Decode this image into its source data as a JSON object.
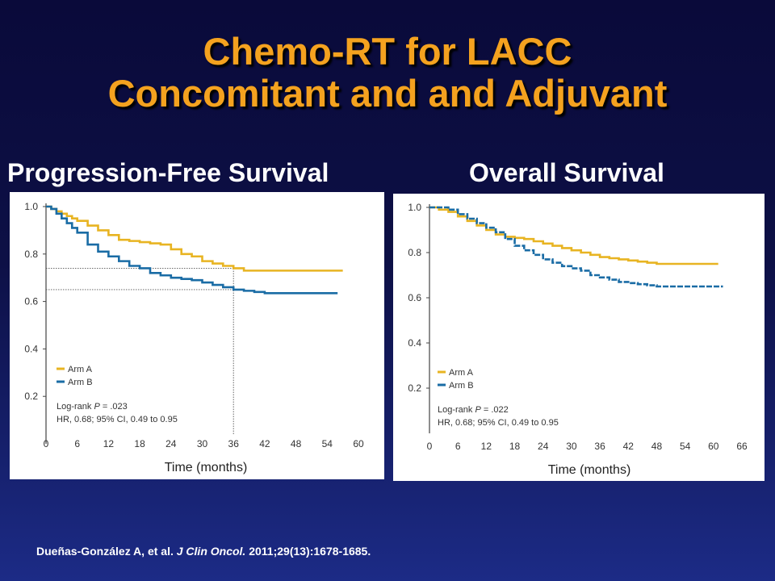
{
  "slide": {
    "title_line1": "Chemo-RT for LACC",
    "title_line2": "Concomitant and and Adjuvant"
  },
  "citation": {
    "authors": "Dueñas-González A, et al.",
    "journal": "J Clin Oncol.",
    "details": "2011;29(13):1678-1685."
  },
  "colors": {
    "arm_a": "#e8b422",
    "arm_b": "#1a6ca5",
    "title": "#f4a21f"
  },
  "chart_data": [
    {
      "type": "line",
      "panel_title": "Progression-Free Survival",
      "xlabel": "Time (months)",
      "ylabel": "",
      "xlim": [
        0,
        60
      ],
      "ylim": [
        0,
        1.0
      ],
      "x_ticks": [
        0,
        6,
        12,
        18,
        24,
        30,
        36,
        42,
        48,
        54,
        60
      ],
      "x_tick_labels": [
        "0",
        "6",
        "12",
        "18",
        "24",
        "30",
        "36",
        "42",
        "48",
        "54",
        "60"
      ],
      "y_ticks": [
        0.2,
        0.4,
        0.6,
        0.8,
        1.0
      ],
      "y_tick_labels": [
        "0.2",
        "0.4",
        "0.6",
        "0.8",
        "1.0"
      ],
      "legend": [
        "Arm A",
        "Arm B"
      ],
      "legend_position": "lower-left",
      "stats_line1_prefix": "Log-rank ",
      "stats_line1_p": "P",
      "stats_line1_value": " = .023",
      "stats_line2": "HR, 0.68; 95% CI, 0.49 to 0.95",
      "reference_lines": {
        "x": 36,
        "y_arm_a": 0.74,
        "y_arm_b": 0.65
      },
      "series": [
        {
          "name": "Arm A",
          "style": "solid",
          "x": [
            0,
            1,
            2,
            3,
            4,
            5,
            6,
            8,
            10,
            12,
            14,
            16,
            18,
            20,
            22,
            24,
            26,
            28,
            30,
            32,
            34,
            36,
            38,
            42,
            48,
            54,
            57
          ],
          "y": [
            1.0,
            0.99,
            0.98,
            0.97,
            0.96,
            0.95,
            0.94,
            0.92,
            0.9,
            0.88,
            0.86,
            0.855,
            0.85,
            0.845,
            0.84,
            0.82,
            0.8,
            0.79,
            0.77,
            0.76,
            0.75,
            0.74,
            0.73,
            0.73,
            0.73,
            0.73,
            0.73
          ]
        },
        {
          "name": "Arm B",
          "style": "solid",
          "x": [
            0,
            1,
            2,
            3,
            4,
            5,
            6,
            8,
            10,
            12,
            14,
            16,
            18,
            20,
            22,
            24,
            26,
            28,
            30,
            32,
            34,
            36,
            38,
            40,
            42,
            46,
            50,
            54,
            56
          ],
          "y": [
            1.0,
            0.99,
            0.97,
            0.95,
            0.93,
            0.91,
            0.89,
            0.84,
            0.81,
            0.79,
            0.77,
            0.75,
            0.74,
            0.72,
            0.71,
            0.7,
            0.695,
            0.69,
            0.68,
            0.67,
            0.66,
            0.65,
            0.645,
            0.64,
            0.635,
            0.635,
            0.635,
            0.635,
            0.635
          ]
        }
      ]
    },
    {
      "type": "line",
      "panel_title": "Overall Survival",
      "xlabel": "Time (months)",
      "ylabel": "",
      "xlim": [
        0,
        66
      ],
      "ylim": [
        0,
        1.0
      ],
      "x_ticks": [
        0,
        6,
        12,
        18,
        24,
        30,
        36,
        42,
        48,
        54,
        60,
        66
      ],
      "x_tick_labels": [
        "0",
        "6",
        "12",
        "18",
        "24",
        "30",
        "36",
        "42",
        "48",
        "54",
        "60",
        "66"
      ],
      "y_ticks": [
        0.2,
        0.4,
        0.6,
        0.8,
        1.0
      ],
      "y_tick_labels": [
        "0.2",
        "0.4",
        "0.6",
        "0.8",
        "1.0"
      ],
      "legend": [
        "Arm A",
        "Arm B"
      ],
      "legend_position": "lower-left",
      "stats_line1_prefix": "Log-rank ",
      "stats_line1_p": "P",
      "stats_line1_value": " = .022",
      "stats_line2": "HR, 0.68; 95% CI, 0.49 to 0.95",
      "series": [
        {
          "name": "Arm A",
          "style": "solid",
          "x": [
            0,
            2,
            4,
            6,
            8,
            10,
            12,
            14,
            16,
            18,
            20,
            22,
            24,
            26,
            28,
            30,
            32,
            34,
            36,
            38,
            40,
            42,
            44,
            46,
            48,
            54,
            61
          ],
          "y": [
            1.0,
            0.99,
            0.98,
            0.96,
            0.94,
            0.92,
            0.9,
            0.88,
            0.87,
            0.865,
            0.86,
            0.85,
            0.84,
            0.83,
            0.82,
            0.81,
            0.8,
            0.79,
            0.78,
            0.775,
            0.77,
            0.765,
            0.76,
            0.755,
            0.75,
            0.75,
            0.75
          ]
        },
        {
          "name": "Arm B",
          "style": "dashed",
          "x": [
            0,
            2,
            4,
            6,
            8,
            10,
            12,
            14,
            16,
            18,
            20,
            22,
            24,
            26,
            28,
            30,
            32,
            34,
            36,
            38,
            40,
            42,
            44,
            46,
            48,
            54,
            62
          ],
          "y": [
            1.0,
            1.0,
            0.99,
            0.97,
            0.95,
            0.93,
            0.91,
            0.89,
            0.86,
            0.83,
            0.81,
            0.79,
            0.77,
            0.755,
            0.74,
            0.73,
            0.72,
            0.7,
            0.69,
            0.68,
            0.67,
            0.665,
            0.66,
            0.655,
            0.65,
            0.65,
            0.65
          ]
        }
      ]
    }
  ]
}
